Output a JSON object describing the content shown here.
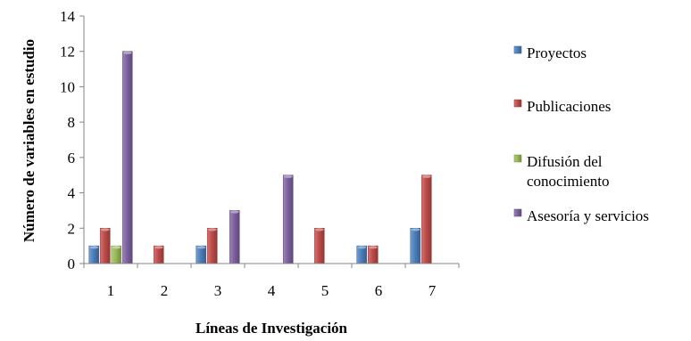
{
  "chart_data": {
    "type": "bar",
    "title": "",
    "xlabel": "Líneas de Investigación",
    "ylabel": "Número de variables en estudio",
    "categories": [
      "1",
      "2",
      "3",
      "4",
      "5",
      "6",
      "7"
    ],
    "ylim": [
      0,
      14
    ],
    "yticks": [
      0,
      2,
      4,
      6,
      8,
      10,
      12,
      14
    ],
    "grid": false,
    "legend_position": "right",
    "series": [
      {
        "name": "Proyectos",
        "values": [
          1,
          0,
          1,
          0,
          0,
          1,
          2
        ],
        "color": "#4a7ebb"
      },
      {
        "name": "Publicaciones",
        "values": [
          2,
          1,
          2,
          0,
          2,
          1,
          5
        ],
        "color": "#be4b48"
      },
      {
        "name": "Difusión del conocimiento",
        "legend_lines": [
          "Difusión del",
          "conocimiento"
        ],
        "values": [
          1,
          0,
          0,
          0,
          0,
          0,
          0
        ],
        "color": "#98b954"
      },
      {
        "name": "Asesoría y servicios",
        "values": [
          12,
          0,
          3,
          5,
          0,
          0,
          0
        ],
        "color": "#7d60a0"
      }
    ]
  }
}
